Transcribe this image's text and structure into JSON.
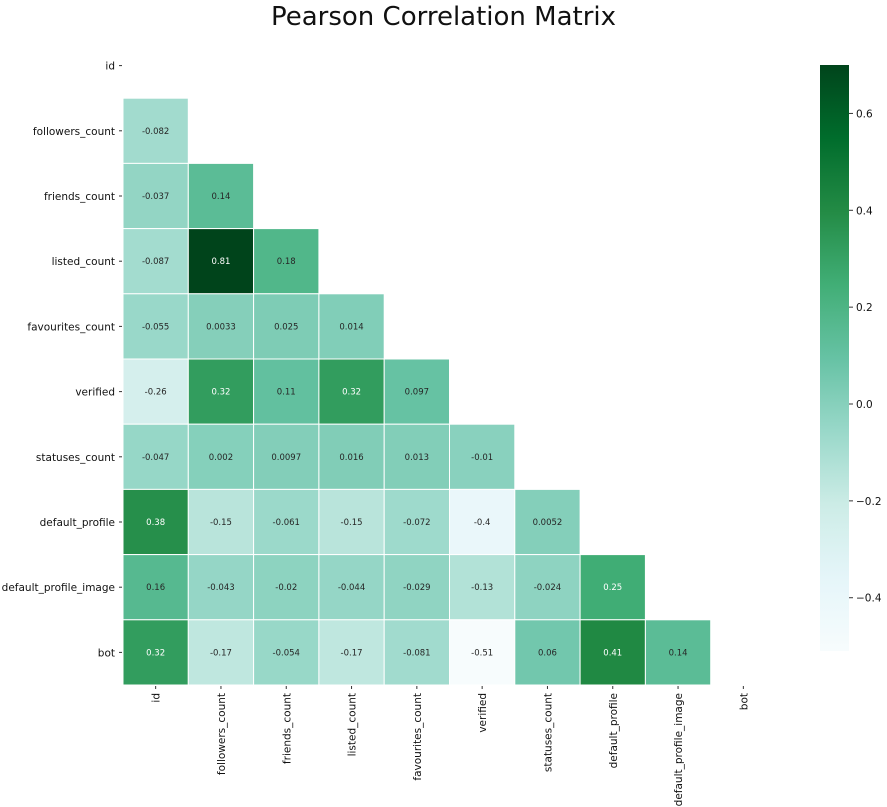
{
  "chart_data": {
    "type": "heatmap",
    "title": "Pearson Correlation Matrix",
    "variables": [
      "id",
      "followers_count",
      "friends_count",
      "listed_count",
      "favourites_count",
      "verified",
      "statuses_count",
      "default_profile",
      "default_profile_image",
      "bot"
    ],
    "mask": "upper-triangle-including-diagonal",
    "lower_triangle": [
      [],
      [
        "-0.082"
      ],
      [
        "-0.037",
        "0.14"
      ],
      [
        "-0.087",
        "0.81",
        "0.18"
      ],
      [
        "-0.055",
        "0.0033",
        "0.025",
        "0.014"
      ],
      [
        "-0.26",
        "0.32",
        "0.11",
        "0.32",
        "0.097"
      ],
      [
        "-0.047",
        "0.002",
        "0.0097",
        "0.016",
        "0.013",
        "-0.01"
      ],
      [
        "0.38",
        "-0.15",
        "-0.061",
        "-0.15",
        "-0.072",
        "-0.4",
        "0.0052"
      ],
      [
        "0.16",
        "-0.043",
        "-0.02",
        "-0.044",
        "-0.029",
        "-0.13",
        "-0.024",
        "0.25"
      ],
      [
        "0.32",
        "-0.17",
        "-0.054",
        "-0.17",
        "-0.081",
        "-0.51",
        "0.06",
        "0.41",
        "0.14"
      ]
    ],
    "colorbar": {
      "colormap": "BuGn",
      "vmin": -0.51,
      "vmax": 0.7,
      "ticks": [
        "0.6",
        "0.4",
        "0.2",
        "0.0",
        "−0.2",
        "−0.4"
      ],
      "tick_values": [
        0.6,
        0.4,
        0.2,
        0.0,
        -0.2,
        -0.4
      ]
    },
    "annot": true,
    "cell_border_color": "#ffffff"
  }
}
